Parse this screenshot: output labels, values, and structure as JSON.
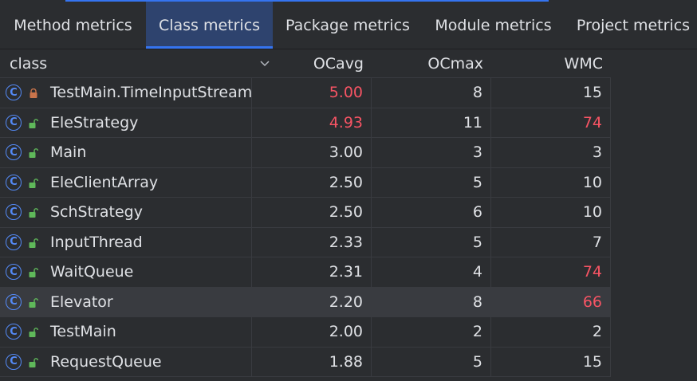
{
  "tabs": [
    {
      "label": "Method metrics",
      "active": false
    },
    {
      "label": "Class metrics",
      "active": true
    },
    {
      "label": "Package metrics",
      "active": false
    },
    {
      "label": "Module metrics",
      "active": false
    },
    {
      "label": "Project metrics",
      "active": false
    }
  ],
  "columns": {
    "class": "class",
    "ocavg": "OCavg",
    "ocmax": "OCmax",
    "wmc": "WMC"
  },
  "colors": {
    "warning": "#f75464",
    "accent": "#3574f0",
    "lock_private": "#c9744b",
    "lock_public": "#5fb85a"
  },
  "rows": [
    {
      "name": "TestMain.TimeInputStream",
      "lock": "private",
      "ocavg": "5.00",
      "ocavg_warn": true,
      "ocmax": "8",
      "ocmax_warn": false,
      "wmc": "15",
      "wmc_warn": false
    },
    {
      "name": "EleStrategy",
      "lock": "public",
      "ocavg": "4.93",
      "ocavg_warn": true,
      "ocmax": "11",
      "ocmax_warn": false,
      "wmc": "74",
      "wmc_warn": true
    },
    {
      "name": "Main",
      "lock": "public",
      "ocavg": "3.00",
      "ocavg_warn": false,
      "ocmax": "3",
      "ocmax_warn": false,
      "wmc": "3",
      "wmc_warn": false
    },
    {
      "name": "EleClientArray",
      "lock": "public",
      "ocavg": "2.50",
      "ocavg_warn": false,
      "ocmax": "5",
      "ocmax_warn": false,
      "wmc": "10",
      "wmc_warn": false
    },
    {
      "name": "SchStrategy",
      "lock": "public",
      "ocavg": "2.50",
      "ocavg_warn": false,
      "ocmax": "6",
      "ocmax_warn": false,
      "wmc": "10",
      "wmc_warn": false
    },
    {
      "name": "InputThread",
      "lock": "public",
      "ocavg": "2.33",
      "ocavg_warn": false,
      "ocmax": "5",
      "ocmax_warn": false,
      "wmc": "7",
      "wmc_warn": false
    },
    {
      "name": "WaitQueue",
      "lock": "public",
      "ocavg": "2.31",
      "ocavg_warn": false,
      "ocmax": "4",
      "ocmax_warn": false,
      "wmc": "74",
      "wmc_warn": true
    },
    {
      "name": "Elevator",
      "lock": "public",
      "ocavg": "2.20",
      "ocavg_warn": false,
      "ocmax": "8",
      "ocmax_warn": false,
      "wmc": "66",
      "wmc_warn": true,
      "selected": true
    },
    {
      "name": "TestMain",
      "lock": "public",
      "ocavg": "2.00",
      "ocavg_warn": false,
      "ocmax": "2",
      "ocmax_warn": false,
      "wmc": "2",
      "wmc_warn": false
    },
    {
      "name": "RequestQueue",
      "lock": "public",
      "ocavg": "1.88",
      "ocavg_warn": false,
      "ocmax": "5",
      "ocmax_warn": false,
      "wmc": "15",
      "wmc_warn": false
    }
  ]
}
